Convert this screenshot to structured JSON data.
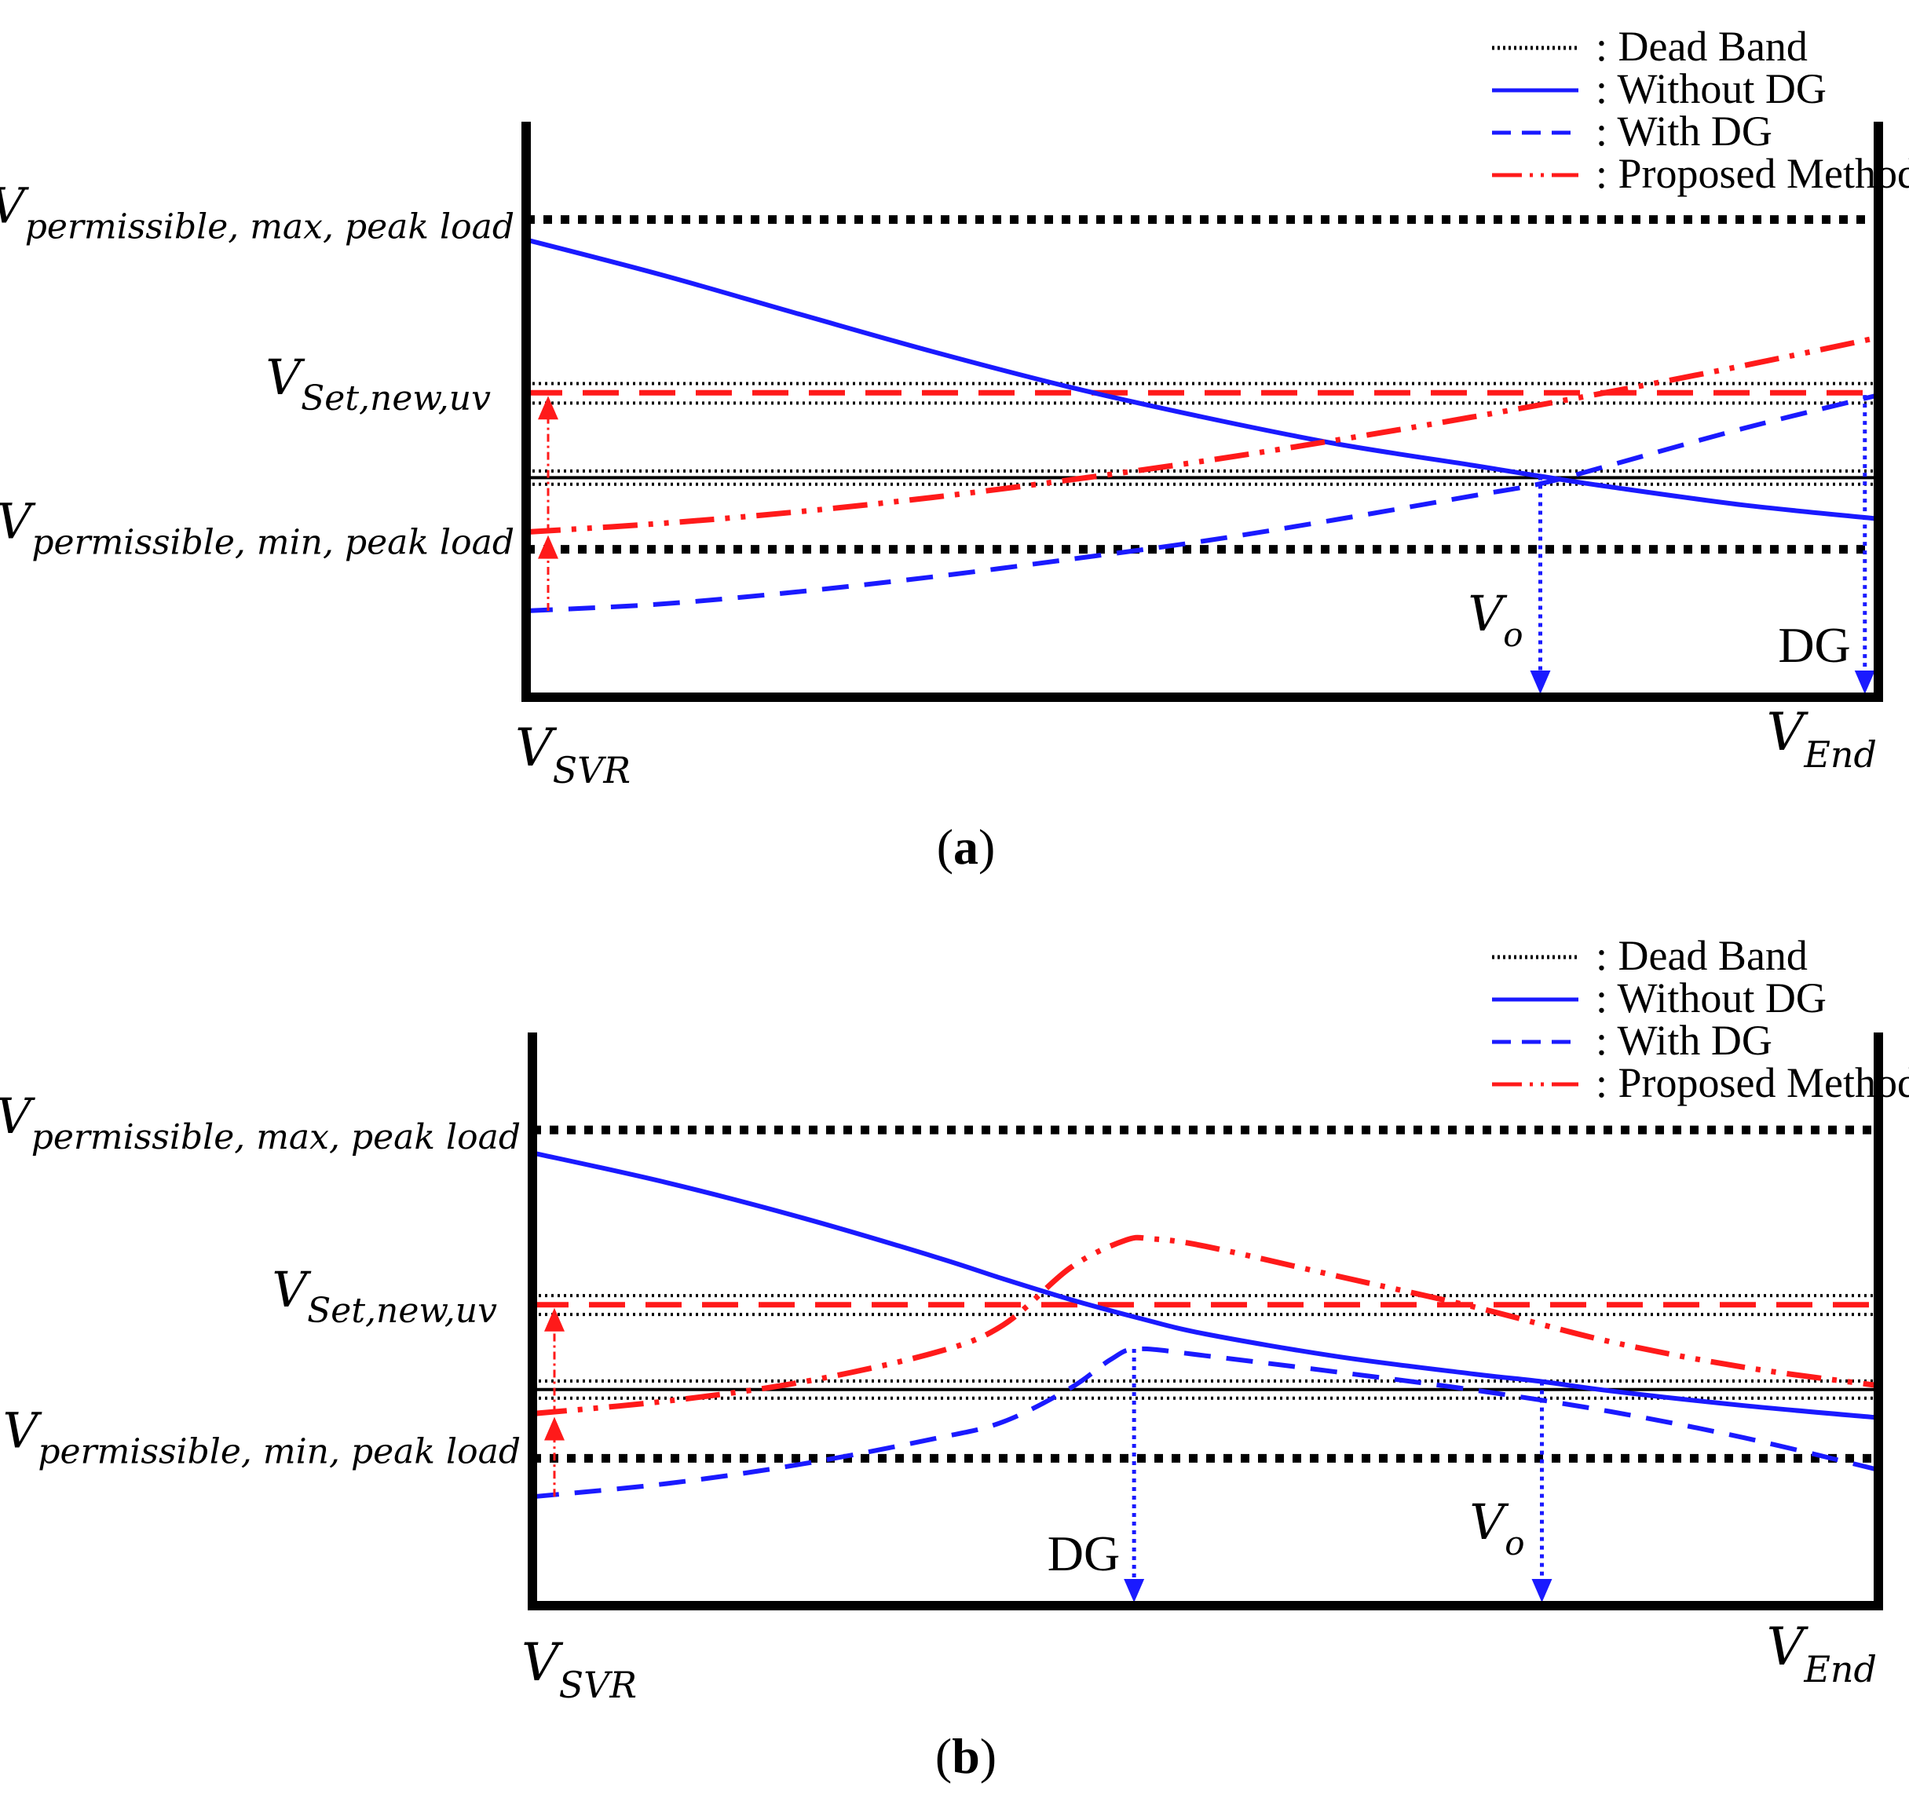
{
  "chart_data": [
    {
      "type": "line",
      "panel": "a",
      "caption": {
        "open": "(",
        "letter": "a",
        "close": ")"
      },
      "legend": [
        {
          "key": "deadband",
          "label": ": Dead Band",
          "style": "dotted"
        },
        {
          "key": "without",
          "label": ": Without DG",
          "style": "solid"
        },
        {
          "key": "with",
          "label": ": With DG",
          "style": "dashed"
        },
        {
          "key": "proposed",
          "label": ": Proposed Method",
          "style": "dash-dot-dot"
        }
      ],
      "y_labels": {
        "max": {
          "main": "V",
          "sub": "permissible, max, peak load"
        },
        "set": {
          "main": "V",
          "sub": "Set,new,uv"
        },
        "min": {
          "main": "V",
          "sub": "permissible, min, peak load"
        }
      },
      "x_labels": {
        "start": {
          "main": "V",
          "sub": "SVR"
        },
        "end": {
          "main": "V",
          "sub": "End"
        }
      },
      "x_range": [
        0,
        1
      ],
      "y_range": [
        0,
        1
      ],
      "levels": {
        "max": 0.83,
        "set_new": 0.529,
        "deadband_new": [
          0.545,
          0.511
        ],
        "deadband_base": [
          0.393,
          0.37
        ],
        "min": 0.257
      },
      "series": [
        {
          "key": "without",
          "name": "Without DG",
          "x": [
            0,
            0.1,
            0.2,
            0.3,
            0.4,
            0.5,
            0.6,
            0.7,
            0.75,
            0.8,
            0.9,
            1.0
          ],
          "y": [
            0.795,
            0.734,
            0.667,
            0.601,
            0.54,
            0.487,
            0.44,
            0.403,
            0.384,
            0.366,
            0.334,
            0.31
          ]
        },
        {
          "key": "with",
          "name": "With DG",
          "x": [
            0,
            0.1,
            0.2,
            0.3,
            0.4,
            0.5,
            0.6,
            0.7,
            0.75,
            0.8,
            0.9,
            1.0
          ],
          "y": [
            0.15,
            0.162,
            0.183,
            0.209,
            0.239,
            0.271,
            0.309,
            0.35,
            0.371,
            0.402,
            0.467,
            0.525
          ]
        },
        {
          "key": "proposed",
          "name": "Proposed Method",
          "x": [
            0,
            0.1,
            0.2,
            0.3,
            0.4,
            0.5,
            0.6,
            0.7,
            0.8,
            0.9,
            1.0
          ],
          "y": [
            0.287,
            0.302,
            0.322,
            0.347,
            0.377,
            0.41,
            0.447,
            0.487,
            0.53,
            0.576,
            0.625
          ]
        }
      ],
      "markers": [
        {
          "label": "V",
          "sub": "o",
          "x": 0.75
        },
        {
          "label": "DG",
          "sub": "",
          "x": 0.99
        }
      ],
      "arrows_at_start": [
        {
          "from": 0.287,
          "to": 0.529
        },
        {
          "from": 0.15,
          "to": 0.287
        }
      ]
    },
    {
      "type": "line",
      "panel": "b",
      "caption": {
        "open": "(",
        "letter": "b",
        "close": ")"
      },
      "legend": [
        {
          "key": "deadband",
          "label": ": Dead Band",
          "style": "dotted"
        },
        {
          "key": "without",
          "label": ": Without DG",
          "style": "solid"
        },
        {
          "key": "with",
          "label": ": With DG",
          "style": "dashed"
        },
        {
          "key": "proposed",
          "label": ": Proposed Method",
          "style": "dash-dot-dot"
        }
      ],
      "y_labels": {
        "max": {
          "main": "V",
          "sub": "permissible, max, peak load"
        },
        "set": {
          "main": "V",
          "sub": "Set,new,uv"
        },
        "min": {
          "main": "V",
          "sub": "permissible, min, peak load"
        }
      },
      "x_labels": {
        "start": {
          "main": "V",
          "sub": "SVR"
        },
        "end": {
          "main": "V",
          "sub": "End"
        }
      },
      "x_range": [
        0,
        1
      ],
      "y_range": [
        0,
        1
      ],
      "levels": {
        "max": 0.83,
        "set_new": 0.525,
        "deadband_new": [
          0.541,
          0.508
        ],
        "deadband_base": [
          0.392,
          0.362
        ],
        "min": 0.257
      },
      "series": [
        {
          "key": "without",
          "name": "Without DG",
          "x": [
            0,
            0.1,
            0.2,
            0.3,
            0.35,
            0.4,
            0.45,
            0.5,
            0.6,
            0.7,
            0.75,
            0.8,
            0.9,
            1.0
          ],
          "y": [
            0.79,
            0.738,
            0.677,
            0.608,
            0.57,
            0.534,
            0.502,
            0.474,
            0.434,
            0.404,
            0.391,
            0.375,
            0.349,
            0.328
          ]
        },
        {
          "key": "with",
          "name": "With DG",
          "x": [
            0,
            0.1,
            0.2,
            0.3,
            0.35,
            0.4,
            0.43,
            0.45,
            0.5,
            0.6,
            0.7,
            0.8,
            0.9,
            1.0
          ],
          "y": [
            0.19,
            0.213,
            0.247,
            0.292,
            0.321,
            0.38,
            0.43,
            0.448,
            0.436,
            0.407,
            0.376,
            0.339,
            0.293,
            0.237
          ]
        },
        {
          "key": "proposed",
          "name": "Proposed Method",
          "x": [
            0,
            0.1,
            0.2,
            0.3,
            0.35,
            0.4,
            0.44,
            0.46,
            0.5,
            0.6,
            0.7,
            0.8,
            0.9,
            1.0
          ],
          "y": [
            0.335,
            0.357,
            0.39,
            0.442,
            0.49,
            0.59,
            0.637,
            0.64,
            0.627,
            0.574,
            0.521,
            0.461,
            0.416,
            0.384
          ]
        }
      ],
      "markers": [
        {
          "label": "DG",
          "sub": "",
          "x": 0.447
        },
        {
          "label": "V",
          "sub": "o",
          "x": 0.75
        }
      ],
      "arrows_at_start": [
        {
          "from": 0.335,
          "to": 0.525
        },
        {
          "from": 0.19,
          "to": 0.335
        }
      ]
    }
  ]
}
